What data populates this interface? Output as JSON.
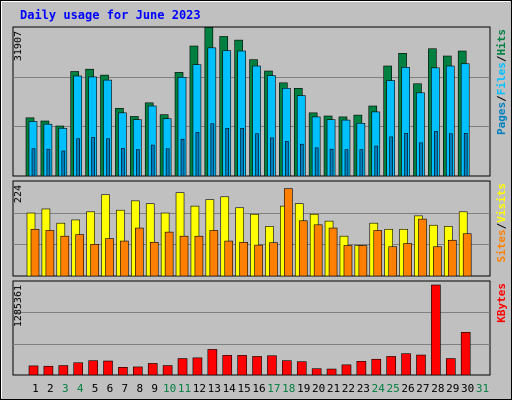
{
  "chart_data": {
    "type": "bar",
    "title": "Daily usage for June 2023",
    "categories": [
      "1",
      "2",
      "3",
      "4",
      "5",
      "6",
      "7",
      "8",
      "9",
      "10",
      "11",
      "12",
      "13",
      "14",
      "15",
      "16",
      "17",
      "18",
      "19",
      "20",
      "21",
      "22",
      "23",
      "24",
      "25",
      "26",
      "27",
      "28",
      "29",
      "30",
      "31"
    ],
    "weekend_days": [
      "3",
      "4",
      "10",
      "11",
      "17",
      "18",
      "24",
      "25",
      "31"
    ],
    "top_panel": {
      "ymax_label": "31907",
      "ymax": 31907,
      "legend": [
        "Pages",
        "Files",
        "Hits"
      ],
      "series": [
        {
          "name": "Hits",
          "color": "#008040",
          "values": [
            12800,
            12100,
            11000,
            23000,
            23500,
            22200,
            14900,
            13100,
            16100,
            13500,
            22800,
            28600,
            32700,
            30700,
            29900,
            25600,
            23100,
            20500,
            19300,
            13900,
            13200,
            13000,
            13400,
            15400,
            24200,
            27000,
            20300,
            28000,
            26400,
            27500
          ]
        },
        {
          "name": "Files",
          "color": "#00c0ff",
          "values": [
            12000,
            11400,
            10500,
            22000,
            21800,
            21100,
            13900,
            12400,
            15400,
            12600,
            21700,
            24500,
            28200,
            27600,
            27500,
            24200,
            22100,
            19300,
            17700,
            13000,
            12400,
            12300,
            11600,
            14100,
            21000,
            23900,
            18300,
            23800,
            24200,
            24700
          ]
        },
        {
          "name": "Pages",
          "color": "#0080c0",
          "values": [
            6000,
            5900,
            5500,
            8200,
            8500,
            8200,
            6100,
            5800,
            6800,
            6000,
            8100,
            9600,
            11500,
            10500,
            10500,
            9300,
            8400,
            7600,
            7000,
            6200,
            5900,
            5800,
            5800,
            6600,
            8600,
            9400,
            7300,
            9800,
            9300,
            9400
          ]
        }
      ]
    },
    "middle_panel": {
      "ymax_label": "224",
      "ymax": 224,
      "legend": [
        "Sites",
        "Visits"
      ],
      "series": [
        {
          "name": "Visits",
          "color": "#ffff00",
          "values": [
            155,
            165,
            130,
            138,
            158,
            200,
            162,
            185,
            178,
            155,
            205,
            172,
            188,
            195,
            168,
            152,
            122,
            172,
            178,
            152,
            135,
            98,
            75,
            130,
            115,
            115,
            148,
            125,
            122,
            158
          ]
        },
        {
          "name": "Sites",
          "color": "#ff8000",
          "values": [
            115,
            112,
            98,
            102,
            78,
            92,
            86,
            118,
            83,
            108,
            98,
            98,
            112,
            86,
            83,
            76,
            82,
            215,
            136,
            126,
            118,
            75,
            75,
            112,
            72,
            80,
            140,
            72,
            88,
            104
          ]
        }
      ]
    },
    "bottom_panel": {
      "ymax_label": "1285361",
      "ymax": 1285361,
      "legend": [
        "KBytes"
      ],
      "series": [
        {
          "name": "KBytes",
          "color": "#ff0000",
          "values": [
            130000,
            125000,
            135000,
            175000,
            205000,
            200000,
            110000,
            115000,
            165000,
            135000,
            235000,
            245000,
            365000,
            280000,
            280000,
            265000,
            275000,
            205000,
            190000,
            90000,
            85000,
            145000,
            195000,
            225000,
            265000,
            305000,
            285000,
            1285361,
            235000,
            610000
          ]
        }
      ]
    }
  }
}
